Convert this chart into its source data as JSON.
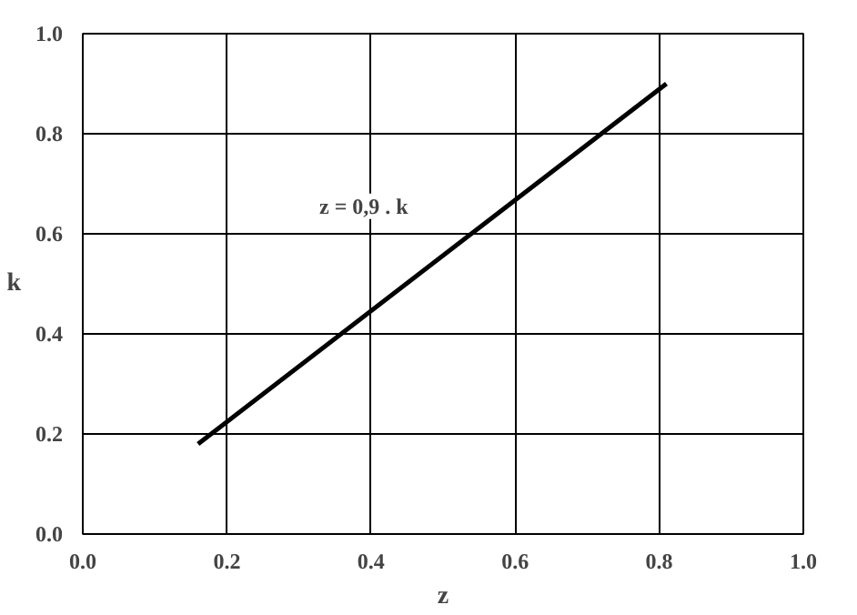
{
  "chart_data": {
    "type": "line",
    "xlabel": "z",
    "ylabel": "k",
    "x": [
      0.16,
      0.81
    ],
    "series": [
      {
        "color": "#000000",
        "values": [
          0.18,
          0.9
        ]
      }
    ],
    "xlim": [
      0,
      1
    ],
    "ylim": [
      0,
      1
    ],
    "xticks": [
      {
        "value": 0,
        "label": "0.0"
      },
      {
        "value": 0.2,
        "label": "0.2"
      },
      {
        "value": 0.4,
        "label": "0.4"
      },
      {
        "value": 0.6,
        "label": "0.6"
      },
      {
        "value": 0.8,
        "label": "0.8"
      },
      {
        "value": 1,
        "label": "1.0"
      }
    ],
    "yticks": [
      {
        "value": 0,
        "label": "0.0"
      },
      {
        "value": 0.2,
        "label": "0.2"
      },
      {
        "value": 0.4,
        "label": "0.4"
      },
      {
        "value": 0.6,
        "label": "0.6"
      },
      {
        "value": 0.8,
        "label": "0.8"
      },
      {
        "value": 1,
        "label": "1.0"
      }
    ],
    "grid": true,
    "marker": "none",
    "line_style": "solid",
    "annotations": [
      "z = 0,9 . k"
    ]
  }
}
